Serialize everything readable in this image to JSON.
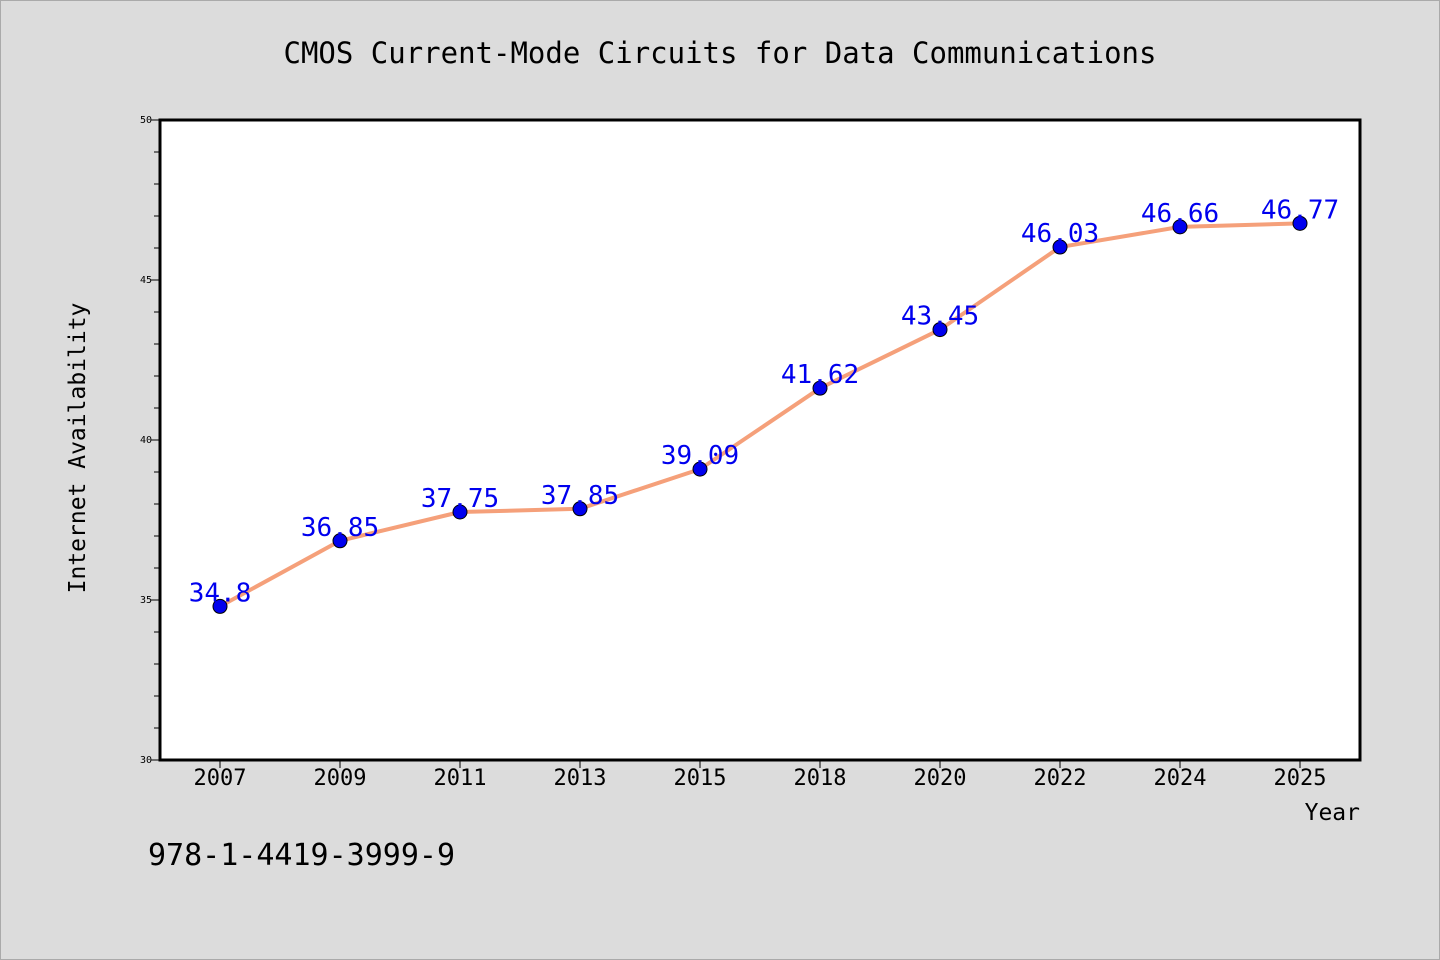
{
  "chart_data": {
    "type": "line",
    "title": "CMOS Current-Mode Circuits for Data Communications",
    "xlabel": "Year",
    "ylabel": "Internet Availability",
    "categories": [
      "2007",
      "2009",
      "2011",
      "2013",
      "2015",
      "2018",
      "2020",
      "2022",
      "2024",
      "2025"
    ],
    "series": [
      {
        "values": [
          34.8,
          36.85,
          37.75,
          37.85,
          39.09,
          41.62,
          43.45,
          46.03,
          46.66,
          46.77
        ],
        "labels": [
          "34.8",
          "36.85",
          "37.75",
          "37.85",
          "39.09",
          "41.62",
          "43.45",
          "46.03",
          "46.66",
          "46.77"
        ],
        "line_color": "#f5a07a",
        "marker_color": "#0000ee",
        "label_color": "#0000ee"
      }
    ],
    "ylim": [
      30,
      50
    ],
    "yticks": [
      30,
      35,
      40,
      45,
      50
    ],
    "y_minor_step": 1,
    "grid": false,
    "legend": "none",
    "annotation": "978-1-4419-3999-9"
  },
  "colors": {
    "page_background": "#dcdcdc",
    "plot_background": "#ffffff",
    "axis": "#000000",
    "text": "#000000"
  }
}
